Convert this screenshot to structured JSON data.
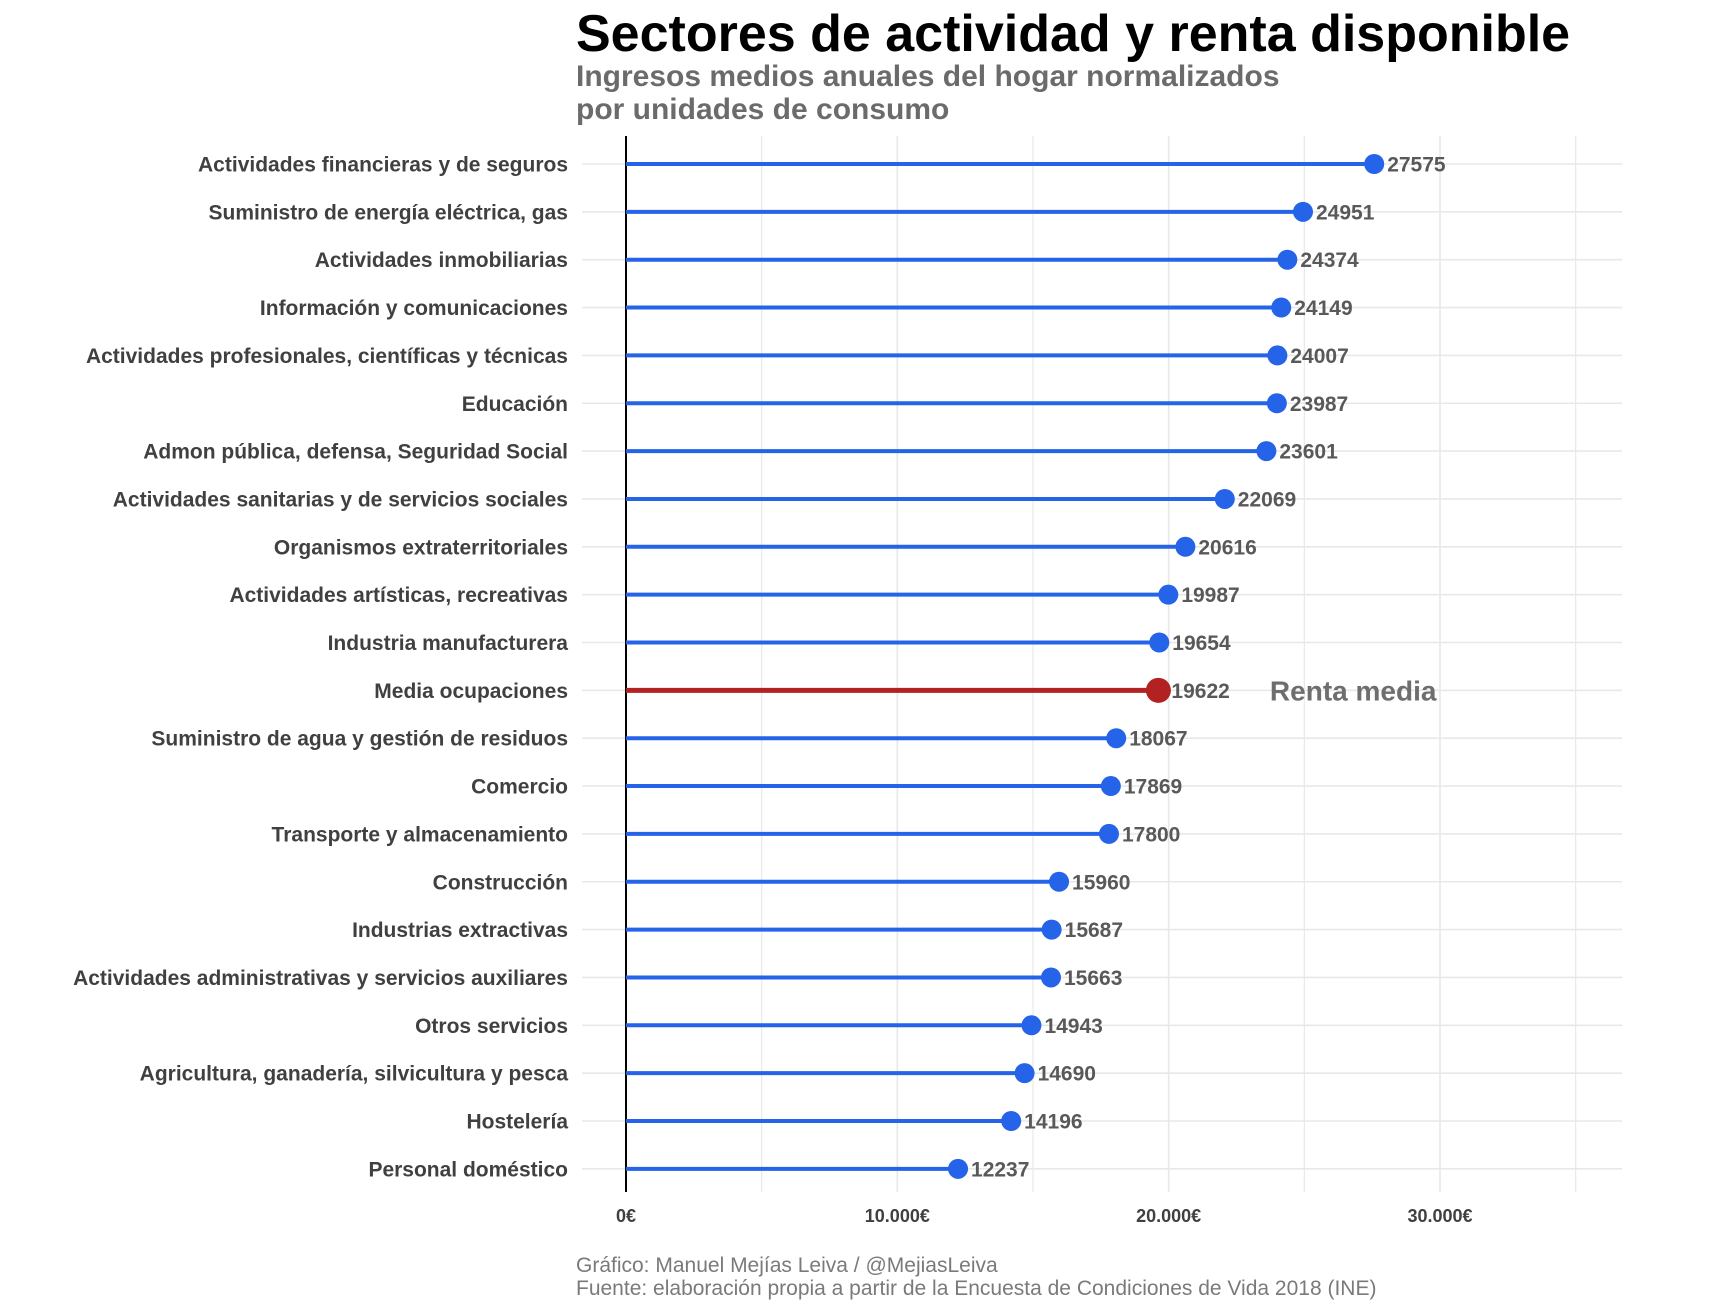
{
  "chart_data": {
    "type": "lollipop",
    "title": "Sectores de actividad y renta disponible",
    "subtitle_lines": [
      "Ingresos medios anuales del hogar normalizados",
      "por unidades de consumo"
    ],
    "caption_lines": [
      "Gráfico: Manuel Mejías Leiva / @MejiasLeiva",
      "Fuente: elaboración propia a partir de la Encuesta de Condiciones de Vida 2018 (INE)"
    ],
    "xlabel": "",
    "ylabel": "",
    "xlim": [
      0,
      36000
    ],
    "x_ticks": [
      {
        "value": 0,
        "label": "0€"
      },
      {
        "value": 10000,
        "label": "10.000€"
      },
      {
        "value": 20000,
        "label": "20.000€"
      },
      {
        "value": 30000,
        "label": "30.000€"
      }
    ],
    "grid": true,
    "categories": [
      "Actividades financieras y de seguros",
      "Suministro de energía eléctrica, gas",
      "Actividades inmobiliarias",
      "Información y comunicaciones",
      "Actividades profesionales, científicas y técnicas",
      "Educación",
      "Admon pública, defensa, Seguridad Social",
      "Actividades sanitarias y de servicios sociales",
      "Organismos extraterritoriales",
      "Actividades artísticas, recreativas",
      "Industria manufacturera",
      "Media ocupaciones",
      "Suministro de agua y gestión de residuos",
      "Comercio",
      "Transporte y almacenamiento",
      "Construcción",
      "Industrias extractivas",
      "Actividades administrativas y servicios auxiliares",
      "Otros servicios",
      "Agricultura, ganadería, silvicultura y pesca",
      "Hostelería",
      "Personal doméstico"
    ],
    "values": [
      27575,
      24951,
      24374,
      24149,
      24007,
      23987,
      23601,
      22069,
      20616,
      19987,
      19654,
      19622,
      18067,
      17869,
      17800,
      15960,
      15687,
      15663,
      14943,
      14690,
      14196,
      12237
    ],
    "highlight_category": "Media ocupaciones",
    "colors": {
      "default": "#2563e8",
      "highlight": "#b22222",
      "grid": "#e8e8e8",
      "axis": "#000000"
    },
    "annotations": [
      {
        "text": "Renta media",
        "category": "Media ocupaciones",
        "x": 26800
      }
    ]
  }
}
